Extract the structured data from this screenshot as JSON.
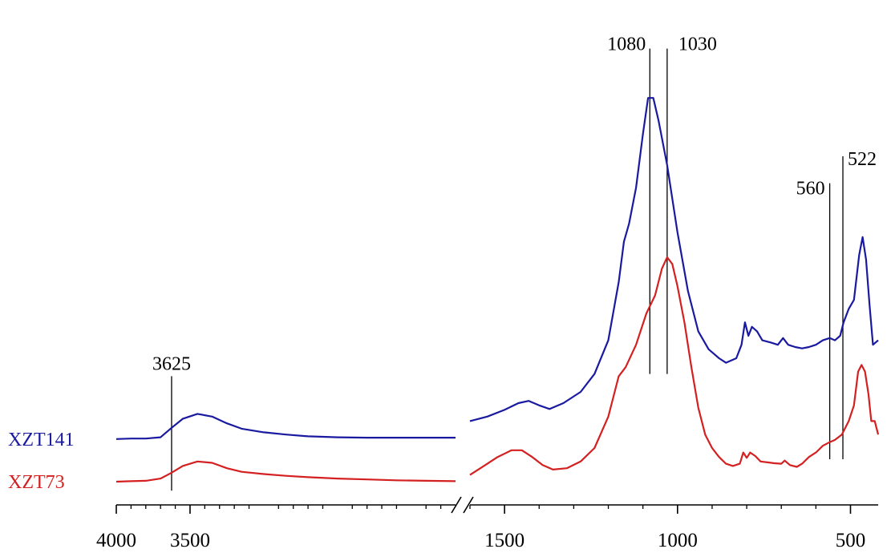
{
  "chart_data": {
    "type": "line",
    "title": "",
    "xlabel": "",
    "ylabel": "",
    "x_direction": "decreasing",
    "axis_break": {
      "from": 1600,
      "to": 1700
    },
    "x_segments": [
      {
        "xlim": [
          4000,
          1700
        ]
      },
      {
        "xlim": [
          1600,
          420
        ]
      }
    ],
    "x_ticks": [
      {
        "value": 4000,
        "label": "4000"
      },
      {
        "value": 3500,
        "label": "3500"
      },
      {
        "value": 1500,
        "label": "1500"
      },
      {
        "value": 1000,
        "label": "1000"
      },
      {
        "value": 500,
        "label": "500"
      }
    ],
    "y_axis_shown": false,
    "grid": false,
    "legend": "none",
    "series": [
      {
        "name": "XZT141",
        "color": "#1a1aa0",
        "points": [
          [
            4000,
            0.12
          ],
          [
            3900,
            0.121
          ],
          [
            3800,
            0.121
          ],
          [
            3700,
            0.124
          ],
          [
            3625,
            0.145
          ],
          [
            3550,
            0.165
          ],
          [
            3450,
            0.176
          ],
          [
            3350,
            0.17
          ],
          [
            3250,
            0.155
          ],
          [
            3150,
            0.143
          ],
          [
            3000,
            0.135
          ],
          [
            2850,
            0.13
          ],
          [
            2700,
            0.126
          ],
          [
            2500,
            0.124
          ],
          [
            2300,
            0.123
          ],
          [
            2100,
            0.123
          ],
          [
            1900,
            0.123
          ],
          [
            1700,
            0.123
          ],
          [
            1600,
            0.16
          ],
          [
            1550,
            0.17
          ],
          [
            1500,
            0.185
          ],
          [
            1460,
            0.2
          ],
          [
            1430,
            0.205
          ],
          [
            1400,
            0.195
          ],
          [
            1370,
            0.187
          ],
          [
            1330,
            0.2
          ],
          [
            1280,
            0.225
          ],
          [
            1240,
            0.265
          ],
          [
            1200,
            0.34
          ],
          [
            1170,
            0.47
          ],
          [
            1155,
            0.56
          ],
          [
            1140,
            0.6
          ],
          [
            1120,
            0.68
          ],
          [
            1100,
            0.8
          ],
          [
            1085,
            0.88
          ],
          [
            1070,
            0.88
          ],
          [
            1055,
            0.83
          ],
          [
            1030,
            0.73
          ],
          [
            1000,
            0.58
          ],
          [
            970,
            0.45
          ],
          [
            940,
            0.36
          ],
          [
            910,
            0.32
          ],
          [
            880,
            0.3
          ],
          [
            860,
            0.29
          ],
          [
            830,
            0.3
          ],
          [
            815,
            0.33
          ],
          [
            805,
            0.38
          ],
          [
            795,
            0.35
          ],
          [
            785,
            0.37
          ],
          [
            770,
            0.36
          ],
          [
            755,
            0.34
          ],
          [
            730,
            0.335
          ],
          [
            710,
            0.33
          ],
          [
            695,
            0.345
          ],
          [
            680,
            0.33
          ],
          [
            660,
            0.325
          ],
          [
            640,
            0.322
          ],
          [
            620,
            0.325
          ],
          [
            600,
            0.33
          ],
          [
            580,
            0.34
          ],
          [
            560,
            0.345
          ],
          [
            545,
            0.34
          ],
          [
            530,
            0.35
          ],
          [
            520,
            0.38
          ],
          [
            505,
            0.41
          ],
          [
            490,
            0.43
          ],
          [
            475,
            0.53
          ],
          [
            465,
            0.57
          ],
          [
            455,
            0.52
          ],
          [
            445,
            0.42
          ],
          [
            435,
            0.33
          ],
          [
            420,
            0.34
          ]
        ]
      },
      {
        "name": "XZT73",
        "color": "#d42020",
        "points": [
          [
            4000,
            0.025
          ],
          [
            3900,
            0.026
          ],
          [
            3800,
            0.027
          ],
          [
            3700,
            0.032
          ],
          [
            3625,
            0.045
          ],
          [
            3550,
            0.06
          ],
          [
            3450,
            0.07
          ],
          [
            3350,
            0.067
          ],
          [
            3250,
            0.055
          ],
          [
            3150,
            0.047
          ],
          [
            3000,
            0.042
          ],
          [
            2850,
            0.038
          ],
          [
            2700,
            0.035
          ],
          [
            2500,
            0.032
          ],
          [
            2300,
            0.03
          ],
          [
            2100,
            0.028
          ],
          [
            1900,
            0.027
          ],
          [
            1700,
            0.026
          ],
          [
            1600,
            0.04
          ],
          [
            1560,
            0.06
          ],
          [
            1520,
            0.08
          ],
          [
            1480,
            0.095
          ],
          [
            1450,
            0.095
          ],
          [
            1420,
            0.08
          ],
          [
            1390,
            0.062
          ],
          [
            1360,
            0.052
          ],
          [
            1320,
            0.055
          ],
          [
            1280,
            0.07
          ],
          [
            1240,
            0.1
          ],
          [
            1200,
            0.17
          ],
          [
            1170,
            0.26
          ],
          [
            1150,
            0.28
          ],
          [
            1120,
            0.33
          ],
          [
            1090,
            0.4
          ],
          [
            1065,
            0.44
          ],
          [
            1045,
            0.5
          ],
          [
            1030,
            0.525
          ],
          [
            1015,
            0.51
          ],
          [
            1000,
            0.46
          ],
          [
            980,
            0.38
          ],
          [
            960,
            0.28
          ],
          [
            940,
            0.19
          ],
          [
            920,
            0.13
          ],
          [
            900,
            0.1
          ],
          [
            880,
            0.08
          ],
          [
            860,
            0.065
          ],
          [
            840,
            0.06
          ],
          [
            820,
            0.065
          ],
          [
            810,
            0.09
          ],
          [
            800,
            0.078
          ],
          [
            790,
            0.09
          ],
          [
            775,
            0.082
          ],
          [
            760,
            0.07
          ],
          [
            740,
            0.068
          ],
          [
            720,
            0.066
          ],
          [
            700,
            0.065
          ],
          [
            690,
            0.072
          ],
          [
            675,
            0.062
          ],
          [
            655,
            0.058
          ],
          [
            640,
            0.065
          ],
          [
            620,
            0.08
          ],
          [
            600,
            0.09
          ],
          [
            580,
            0.105
          ],
          [
            560,
            0.113
          ],
          [
            545,
            0.118
          ],
          [
            525,
            0.13
          ],
          [
            505,
            0.16
          ],
          [
            490,
            0.195
          ],
          [
            478,
            0.27
          ],
          [
            468,
            0.285
          ],
          [
            458,
            0.27
          ],
          [
            448,
            0.22
          ],
          [
            440,
            0.16
          ],
          [
            430,
            0.16
          ],
          [
            420,
            0.13
          ]
        ]
      }
    ],
    "annotations": [
      {
        "x": 3625,
        "label": "3625",
        "top": 0.26,
        "bottom": 0.005
      },
      {
        "x": 1080,
        "label": "1080",
        "top": 0.99,
        "bottom": 0.265
      },
      {
        "x": 1030,
        "label": "1030",
        "top": 0.99,
        "bottom": 0.265
      },
      {
        "x": 560,
        "label": "560",
        "top": 0.69,
        "bottom": 0.075
      },
      {
        "x": 522,
        "label": "522",
        "top": 0.75,
        "bottom": 0.075
      }
    ]
  }
}
